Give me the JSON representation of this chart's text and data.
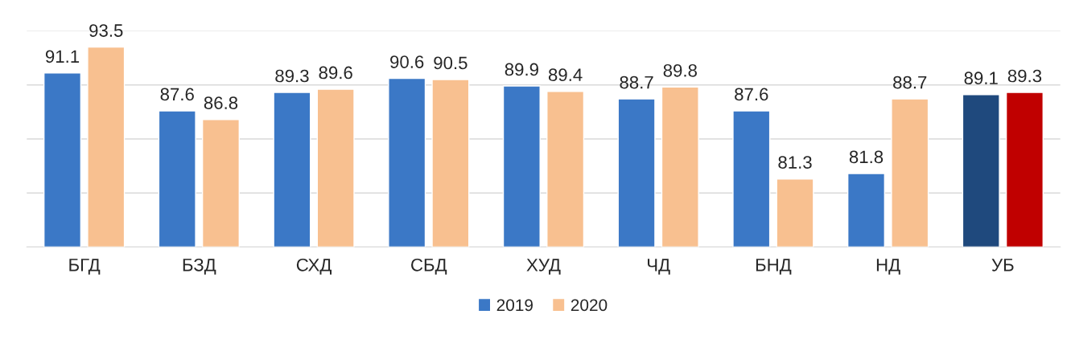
{
  "chart_data": {
    "type": "bar",
    "categories": [
      "БГД",
      "БЗД",
      "СХД",
      "СБД",
      "ХУД",
      "ЧД",
      "БНД",
      "НД",
      "УБ"
    ],
    "series": [
      {
        "name": "2019",
        "color": "#3b78c6",
        "colors": [
          "#3b78c6",
          "#3b78c6",
          "#3b78c6",
          "#3b78c6",
          "#3b78c6",
          "#3b78c6",
          "#3b78c6",
          "#3b78c6",
          "#1f497d"
        ],
        "values": [
          91.1,
          87.6,
          89.3,
          90.6,
          89.9,
          88.7,
          87.6,
          81.8,
          89.1
        ]
      },
      {
        "name": "2020",
        "color": "#f8c090",
        "colors": [
          "#f8c090",
          "#f8c090",
          "#f8c090",
          "#f8c090",
          "#f8c090",
          "#f8c090",
          "#f8c090",
          "#f8c090",
          "#c00000"
        ],
        "values": [
          93.5,
          86.8,
          89.6,
          90.5,
          89.4,
          89.8,
          81.3,
          88.7,
          89.3
        ]
      }
    ],
    "ylim": [
      75,
      95
    ],
    "yticks": [
      {
        "value": 75,
        "label": null
      },
      {
        "value": 80,
        "label": null
      },
      {
        "value": 85,
        "label": null
      },
      {
        "value": 90,
        "label": null
      },
      {
        "value": 95,
        "label": null
      }
    ],
    "grid": "y",
    "legend": "bottom",
    "data_labels": true,
    "tick_labels": "x"
  }
}
